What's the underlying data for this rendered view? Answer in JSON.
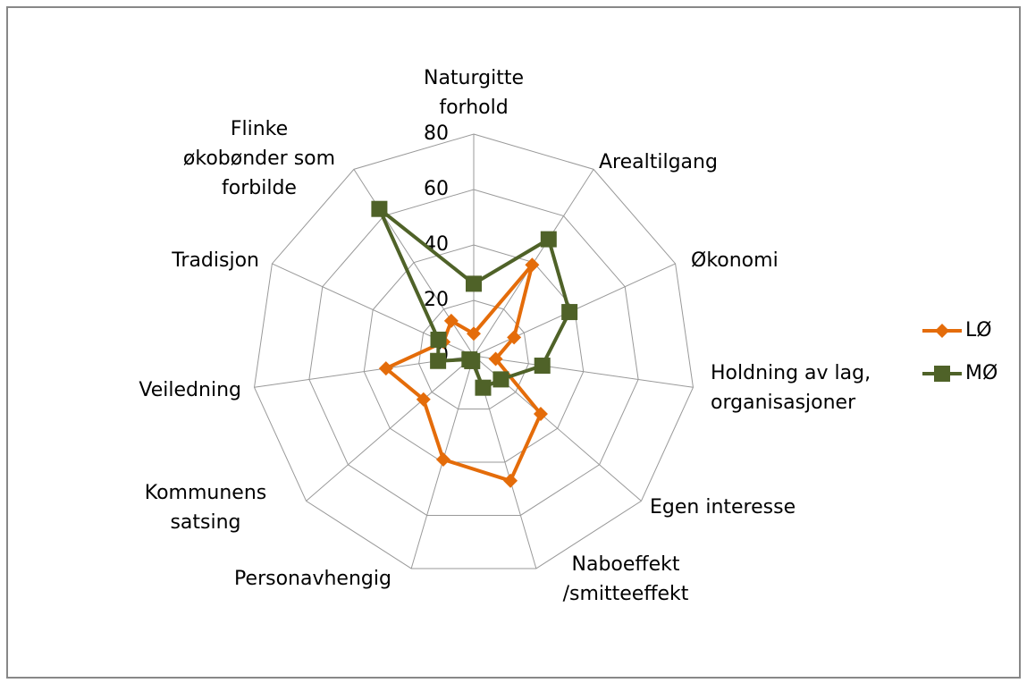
{
  "chart_data": {
    "type": "radar",
    "categories": [
      "Naturgitte\nforhold",
      "Arealtilgang",
      "Økonomi",
      "Holdning av lag,\norganisasjoner",
      "Egen interesse",
      "Naboeffekt\n/smitteeffekt",
      "Personavhengig",
      "Kommunens\nsatsing",
      "Veiledning",
      "Tradisjon",
      "Flinke\nøkobønder som\nforbilde"
    ],
    "series": [
      {
        "name": "LØ",
        "color": "#e46c0a",
        "marker": "diamond",
        "values": [
          8,
          39,
          16,
          8,
          32,
          47,
          39,
          24,
          32,
          12,
          15
        ]
      },
      {
        "name": "MØ",
        "color": "#4f6228",
        "marker": "square",
        "values": [
          26,
          50,
          38,
          25,
          13,
          12,
          2,
          2,
          13,
          14,
          63
        ]
      }
    ],
    "ylim": [
      0,
      80
    ],
    "yticks": [
      0,
      20,
      40,
      60,
      80
    ],
    "grid": true,
    "legend": "right"
  }
}
